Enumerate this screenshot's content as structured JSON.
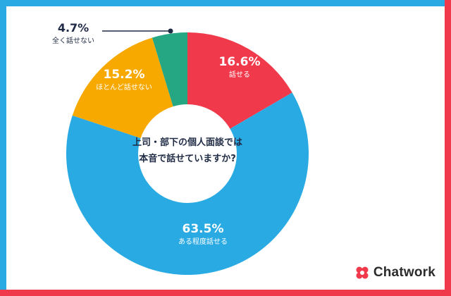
{
  "chart_data": {
    "type": "pie",
    "variant": "donut",
    "title": "上司・部下の個人面談では\n本音で話せていますか?",
    "slices": [
      {
        "label": "話せる",
        "value": 16.6,
        "display": "16.6%",
        "color": "#f0394b"
      },
      {
        "label": "ある程度話せる",
        "value": 63.5,
        "display": "63.5%",
        "color": "#2aaae3"
      },
      {
        "label": "ほとんど話せない",
        "value": 15.2,
        "display": "15.2%",
        "color": "#f8a900"
      },
      {
        "label": "全く話せない",
        "value": 4.7,
        "display": "4.7%",
        "color": "#25a784"
      }
    ]
  },
  "colors": {
    "border_top": "#2aaae3",
    "border_left": "#2aaae3",
    "border_right": "#f0394b",
    "border_bottom": "#f0394b",
    "label_dark": "#1f2a44",
    "label_white": "#ffffff"
  },
  "brand": {
    "name": "Chatwork",
    "logo_icon": "chatwork-logo-icon"
  }
}
